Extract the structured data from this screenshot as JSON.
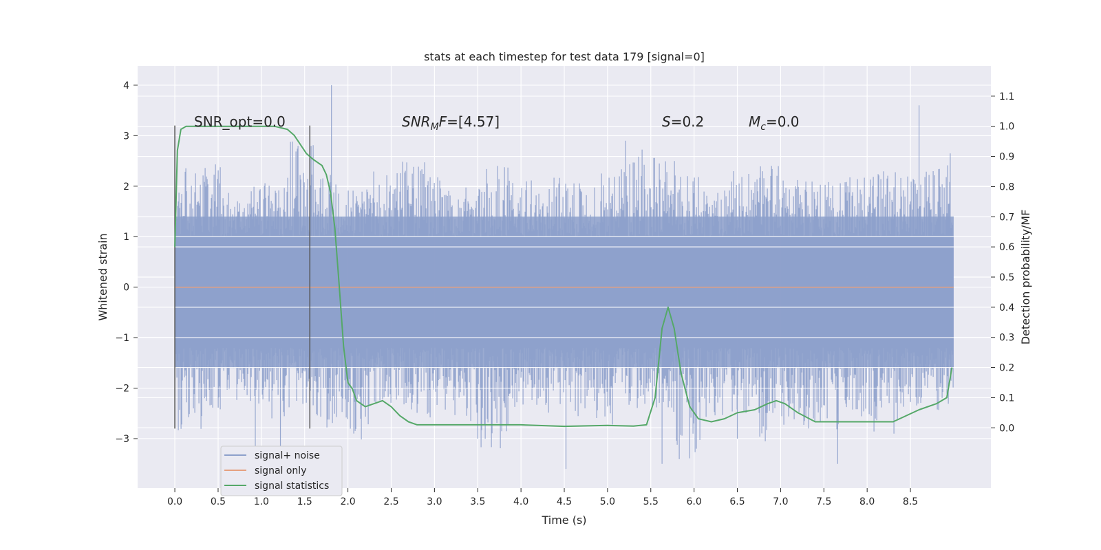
{
  "chart_data": {
    "type": "line",
    "title": "stats at each timestep for test data 179 [signal=0]",
    "xlabel": "Time (s)",
    "ylabel": "Whitened strain",
    "y2label": "Detection probability/MF",
    "xlim": [
      -0.43,
      9.43
    ],
    "ylim": [
      -3.98,
      4.38
    ],
    "y2lim": [
      -0.2,
      1.2
    ],
    "xticks": [
      0.0,
      0.5,
      1.0,
      1.5,
      2.0,
      2.5,
      3.0,
      3.5,
      4.0,
      4.5,
      5.0,
      5.5,
      6.0,
      6.5,
      7.0,
      7.5,
      8.0,
      8.5
    ],
    "xtick_labels": [
      "0.0",
      "0.5",
      "1.0",
      "1.5",
      "2.0",
      "2.5",
      "3.0",
      "3.5",
      "4.0",
      "4.5",
      "5.0",
      "5.5",
      "6.0",
      "6.5",
      "7.0",
      "7.5",
      "8.0",
      "8.5"
    ],
    "yticks": [
      -3,
      -2,
      -1,
      0,
      1,
      2,
      3,
      4
    ],
    "ytick_labels": [
      "−3",
      "−2",
      "−1",
      "0",
      "1",
      "2",
      "3",
      "4"
    ],
    "y2ticks": [
      0.0,
      0.1,
      0.2,
      0.3,
      0.4,
      0.5,
      0.6,
      0.7,
      0.8,
      0.9,
      1.0,
      1.1
    ],
    "y2tick_labels": [
      "0.0",
      "0.1",
      "0.2",
      "0.3",
      "0.4",
      "0.5",
      "0.6",
      "0.7",
      "0.8",
      "0.9",
      "1.0",
      "1.1"
    ],
    "grid": true,
    "legend_position": "lower-left",
    "series": [
      {
        "name": "signal+ noise",
        "color": "#8da0cb",
        "axis": "left",
        "noise": {
          "x_start": 0.0,
          "x_end": 9.0,
          "envelope_max": [
            2.4,
            2.6,
            2.0,
            2.2,
            2.9,
            2.3,
            2.1,
            2.4,
            2.6,
            2.2,
            2.0,
            2.5,
            2.3,
            2.2,
            2.1,
            2.3,
            2.9,
            2.8,
            2.2,
            2.0,
            2.3,
            2.5,
            2.2,
            2.1,
            2.2,
            2.4,
            2.3,
            2.6
          ],
          "envelope_min": [
            -2.9,
            -2.5,
            -2.3,
            -2.6,
            -2.4,
            -2.8,
            -3.1,
            -2.3,
            -2.5,
            -2.6,
            -2.7,
            -3.2,
            -2.4,
            -2.5,
            -2.6,
            -2.8,
            -2.4,
            -2.5,
            -3.6,
            -2.6,
            -2.5,
            -3.1,
            -2.8,
            -3.0,
            -2.6,
            -2.9,
            -2.4,
            -2.5
          ],
          "spikes": [
            [
              1.81,
              4.0
            ],
            [
              8.6,
              3.6
            ],
            [
              5.63,
              -3.5
            ],
            [
              4.52,
              -3.6
            ],
            [
              7.66,
              -3.5
            ],
            [
              0.93,
              -3.2
            ],
            [
              8.96,
              2.65
            ],
            [
              1.22,
              -3.2
            ],
            [
              3.5,
              -3.0
            ],
            [
              6.5,
              -3.0
            ]
          ]
        }
      },
      {
        "name": "signal only",
        "color": "#e5a07f",
        "axis": "left",
        "x": [
          0.0,
          9.0
        ],
        "y": [
          0.0,
          0.0
        ]
      },
      {
        "name": "signal statistics",
        "color": "#55a868",
        "axis": "right",
        "x": [
          0.0,
          0.03,
          0.07,
          0.13,
          0.25,
          0.4,
          0.6,
          0.8,
          1.0,
          1.15,
          1.3,
          1.38,
          1.45,
          1.52,
          1.6,
          1.7,
          1.75,
          1.8,
          1.85,
          1.9,
          1.95,
          2.0,
          2.05,
          2.1,
          2.2,
          2.3,
          2.4,
          2.5,
          2.6,
          2.7,
          2.8,
          3.0,
          3.3,
          3.6,
          4.0,
          4.5,
          5.0,
          5.3,
          5.45,
          5.55,
          5.63,
          5.7,
          5.77,
          5.85,
          5.95,
          6.05,
          6.2,
          6.35,
          6.5,
          6.7,
          6.85,
          6.95,
          7.05,
          7.2,
          7.4,
          7.7,
          8.0,
          8.3,
          8.6,
          8.8,
          8.92,
          8.98
        ],
        "y": [
          0.6,
          0.92,
          0.99,
          1.0,
          1.0,
          1.0,
          1.0,
          1.0,
          1.0,
          1.0,
          0.99,
          0.97,
          0.94,
          0.91,
          0.89,
          0.87,
          0.84,
          0.78,
          0.66,
          0.47,
          0.27,
          0.15,
          0.13,
          0.09,
          0.07,
          0.08,
          0.09,
          0.07,
          0.04,
          0.02,
          0.01,
          0.01,
          0.01,
          0.01,
          0.01,
          0.005,
          0.008,
          0.006,
          0.01,
          0.1,
          0.33,
          0.4,
          0.33,
          0.18,
          0.07,
          0.03,
          0.02,
          0.03,
          0.05,
          0.06,
          0.08,
          0.09,
          0.08,
          0.05,
          0.02,
          0.02,
          0.02,
          0.02,
          0.06,
          0.08,
          0.1,
          0.2
        ]
      }
    ],
    "markers": [
      {
        "x": 0.0,
        "y_from": -2.8,
        "y_to": 3.2
      },
      {
        "x": 1.56,
        "y_from": -2.8,
        "y_to": 3.2
      }
    ],
    "annotations": {
      "snr_opt": "SNR_opt=0.0",
      "snr_mf": "SNR",
      "snr_mf_sub": "M",
      "snr_mf_rest": "F=[4.57]",
      "s_var": "S",
      "s_rest": "=0.2",
      "mc_var": "M",
      "mc_sub": "c",
      "mc_rest": "=0.0"
    }
  }
}
